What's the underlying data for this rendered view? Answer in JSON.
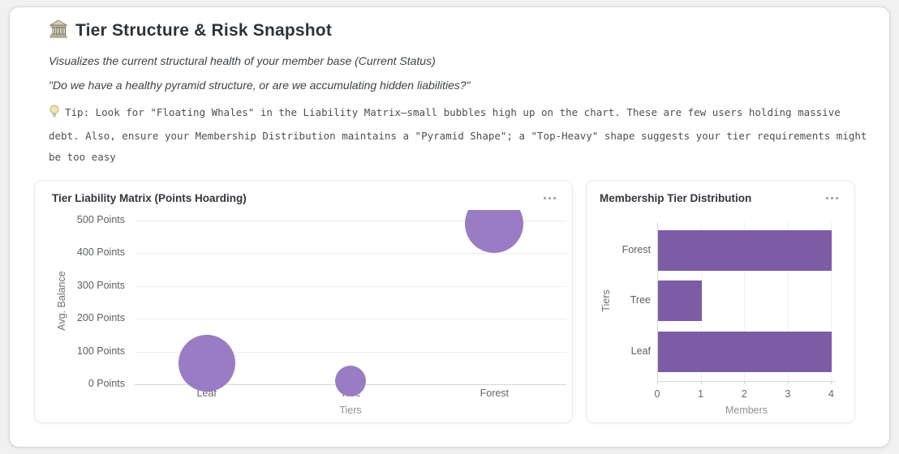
{
  "app": {
    "title": "Tier Structure & Risk Snapshot",
    "subtitle": "Visualizes the current structural health of your member base (Current Status)",
    "quote": "\"Do we have a healthy pyramid structure, or are we accumulating hidden liabilities?\"",
    "tip": "Tip: Look for \"Floating Whales\" in the Liability Matrix—small bubbles high up on the chart. These are few users holding massive debt. Also, ensure your Membership Distribution maintains a \"Pyramid Shape\"; a \"Top-Heavy\" shape suggests your tier requirements might be too easy"
  },
  "icons": {
    "title_icon": "classical-building-icon",
    "tip_icon": "light-bulb-icon",
    "card_menu_icon": "ellipsis-menu-icon"
  },
  "colors": {
    "bubble_fill": "#9a7cc4",
    "bar_fill": "#7d5ca6",
    "grid": "#ededef",
    "axis": "#d7d7d9"
  },
  "cards": {
    "liability_title": "Tier Liability Matrix (Points Hoarding)",
    "distribution_title": "Membership Tier Distribution"
  },
  "chart_data": [
    {
      "type": "scatter",
      "subtype": "bubble",
      "title": "Tier Liability Matrix (Points Hoarding)",
      "xlabel": "Tiers",
      "ylabel": "Avg. Balance",
      "categories": [
        "Leaf",
        "Tree",
        "Forest"
      ],
      "points": [
        {
          "category": "Leaf",
          "avg_balance": 65,
          "bubble_radius_px": 35
        },
        {
          "category": "Tree",
          "avg_balance": 10,
          "bubble_radius_px": 19
        },
        {
          "category": "Forest",
          "avg_balance": 490,
          "bubble_radius_px": 36
        }
      ],
      "ytick_labels": [
        "0 Points",
        "100 Points",
        "200 Points",
        "300 Points",
        "400 Points",
        "500 Points"
      ],
      "ytick_values": [
        0,
        100,
        200,
        300,
        400,
        500
      ],
      "ylim": [
        0,
        530
      ],
      "grid": true,
      "legend": false,
      "note": "Forest bubble is clipped flat at the top edge of the plot area"
    },
    {
      "type": "bar",
      "orientation": "horizontal",
      "title": "Membership Tier Distribution",
      "xlabel": "Members",
      "ylabel": "Tiers",
      "categories": [
        "Forest",
        "Tree",
        "Leaf"
      ],
      "values": [
        4,
        1,
        4
      ],
      "xtick_values": [
        0,
        1,
        2,
        3,
        4
      ],
      "xlim": [
        0,
        4
      ],
      "grid": true,
      "legend": false
    }
  ]
}
